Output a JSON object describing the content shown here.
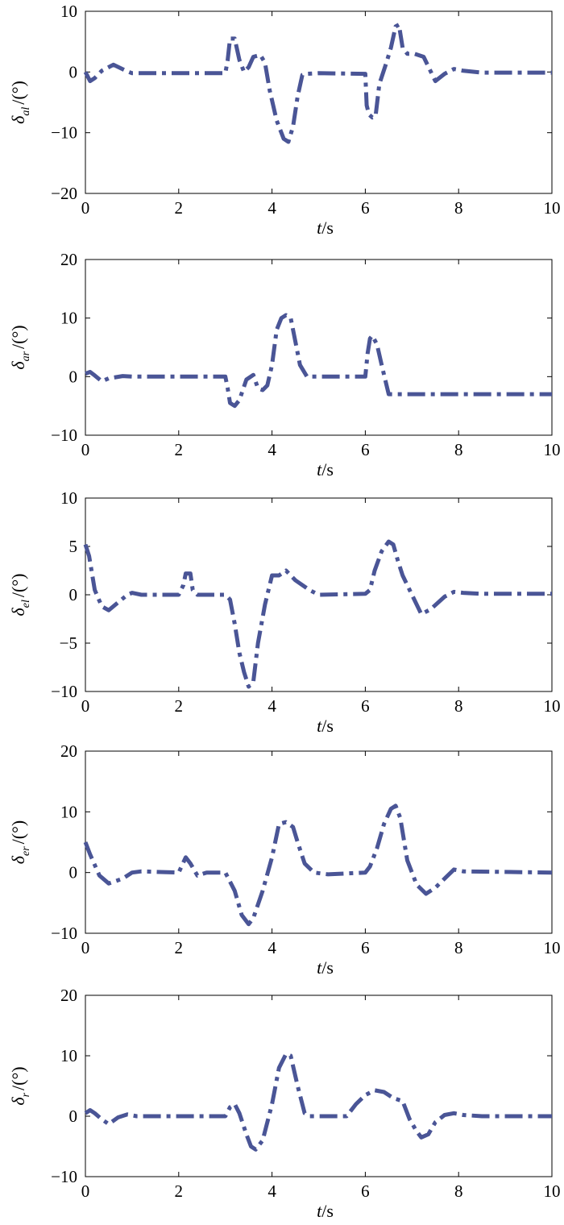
{
  "style": {
    "line_color": "#4a5596"
  },
  "chart_data": [
    {
      "type": "line",
      "xlabel": {
        "main": "t",
        "rest": "/s"
      },
      "ylabel": {
        "main": "δ",
        "sub": "al",
        "rest": "/(°)"
      },
      "xlim": [
        0,
        10
      ],
      "ylim": [
        -20,
        10
      ],
      "xticks": [
        0,
        2,
        4,
        6,
        8,
        10
      ],
      "yticks": [
        -20,
        -10,
        0,
        10
      ],
      "line_style": "dash-dot",
      "grid": false,
      "series": [
        {
          "x": [
            0,
            0.1,
            0.2,
            0.35,
            0.6,
            0.9,
            1.0,
            3.0,
            3.05,
            3.1,
            3.2,
            3.3,
            3.4,
            3.5,
            3.6,
            3.75,
            3.85,
            3.95,
            4.1,
            4.25,
            4.35,
            4.45,
            4.55,
            4.65,
            4.75,
            5.0,
            6.0,
            6.03,
            6.08,
            6.15,
            6.22,
            6.3,
            6.45,
            6.55,
            6.65,
            6.72,
            6.8,
            6.9,
            7.05,
            7.25,
            7.5,
            7.7,
            7.9,
            8.1,
            8.5,
            10
          ],
          "y": [
            0,
            -1.5,
            -1.0,
            0.2,
            1.2,
            0.1,
            -0.2,
            -0.2,
            2.0,
            5.5,
            5.5,
            2.0,
            0.0,
            0.8,
            2.5,
            2.8,
            1.5,
            -3.0,
            -8.0,
            -11.0,
            -11.5,
            -9.0,
            -4.0,
            -0.5,
            -0.3,
            -0.2,
            -0.3,
            -5.5,
            -7.0,
            -7.5,
            -7.3,
            -2.0,
            1.5,
            4.0,
            7.5,
            7.8,
            4.0,
            3.0,
            3.0,
            2.5,
            -1.5,
            -0.3,
            0.5,
            0.2,
            -0.1,
            -0.1
          ]
        }
      ]
    },
    {
      "type": "line",
      "xlabel": {
        "main": "t",
        "rest": "/s"
      },
      "ylabel": {
        "main": "δ",
        "sub": "ar",
        "rest": "/(°)"
      },
      "xlim": [
        0,
        10
      ],
      "ylim": [
        -10,
        20
      ],
      "xticks": [
        0,
        2,
        4,
        6,
        8,
        10
      ],
      "yticks": [
        -10,
        0,
        10,
        20
      ],
      "line_style": "dash-dot",
      "grid": false,
      "series": [
        {
          "x": [
            0,
            0.1,
            0.2,
            0.35,
            0.5,
            0.8,
            1.0,
            3.0,
            3.05,
            3.1,
            3.2,
            3.3,
            3.45,
            3.6,
            3.7,
            3.8,
            3.9,
            4.0,
            4.1,
            4.2,
            4.3,
            4.4,
            4.5,
            4.6,
            4.75,
            5.0,
            6.0,
            6.05,
            6.1,
            6.15,
            6.25,
            6.35,
            6.5,
            8.0,
            10
          ],
          "y": [
            0.5,
            0.8,
            0.2,
            -0.8,
            -0.3,
            0.1,
            0.0,
            0.0,
            -2.0,
            -4.5,
            -5.0,
            -4.0,
            -0.5,
            0.3,
            -2.0,
            -2.3,
            -1.5,
            2.0,
            8.0,
            10.0,
            10.5,
            10.0,
            6.0,
            2.0,
            0.0,
            0.0,
            0.0,
            4.0,
            6.5,
            7.0,
            5.5,
            2.0,
            -3.0,
            -3.0,
            -3.0
          ]
        }
      ]
    },
    {
      "type": "line",
      "xlabel": {
        "main": "t",
        "rest": "/s"
      },
      "ylabel": {
        "main": "δ",
        "sub": "el",
        "rest": "/(°)"
      },
      "xlim": [
        0,
        10
      ],
      "ylim": [
        -10,
        10
      ],
      "xticks": [
        0,
        2,
        4,
        6,
        8,
        10
      ],
      "yticks": [
        -10,
        -5,
        0,
        5,
        10
      ],
      "line_style": "dash-dot",
      "grid": false,
      "series": [
        {
          "x": [
            0,
            0.08,
            0.2,
            0.35,
            0.5,
            0.7,
            0.9,
            1.0,
            1.2,
            2.0,
            2.1,
            2.15,
            2.25,
            2.3,
            2.4,
            2.6,
            3.0,
            3.1,
            3.2,
            3.3,
            3.4,
            3.5,
            3.6,
            3.7,
            3.85,
            4.0,
            4.15,
            4.3,
            4.5,
            4.8,
            5.0,
            6.0,
            6.1,
            6.2,
            6.35,
            6.5,
            6.6,
            6.7,
            6.8,
            7.0,
            7.2,
            7.4,
            7.7,
            7.9,
            8.1,
            8.5,
            10
          ],
          "y": [
            5.2,
            4.0,
            0.5,
            -1.2,
            -1.6,
            -0.8,
            0.0,
            0.2,
            0.0,
            0.0,
            1.0,
            2.2,
            2.2,
            0.5,
            0.0,
            0.0,
            0.0,
            -0.5,
            -3.0,
            -6.0,
            -8.0,
            -9.5,
            -9.0,
            -5.0,
            -1.0,
            2.0,
            2.0,
            2.5,
            1.5,
            0.5,
            0.0,
            0.1,
            0.5,
            2.5,
            4.5,
            5.5,
            5.2,
            3.5,
            2.0,
            0.0,
            -2.0,
            -1.5,
            -0.2,
            0.3,
            0.2,
            0.1,
            0.1
          ]
        }
      ]
    },
    {
      "type": "line",
      "xlabel": {
        "main": "t",
        "rest": "/s"
      },
      "ylabel": {
        "main": "δ",
        "sub": "er",
        "rest": "/(°)"
      },
      "xlim": [
        0,
        10
      ],
      "ylim": [
        -10,
        20
      ],
      "xticks": [
        0,
        2,
        4,
        6,
        8,
        10
      ],
      "yticks": [
        -10,
        0,
        10,
        20
      ],
      "line_style": "dash-dot",
      "grid": false,
      "series": [
        {
          "x": [
            0,
            0.1,
            0.3,
            0.5,
            0.8,
            1.0,
            1.2,
            2.0,
            2.15,
            2.25,
            2.4,
            2.6,
            2.8,
            3.0,
            3.2,
            3.35,
            3.5,
            3.6,
            3.8,
            4.0,
            4.15,
            4.3,
            4.45,
            4.55,
            4.7,
            4.9,
            5.2,
            6.0,
            6.1,
            6.25,
            6.4,
            6.55,
            6.65,
            6.75,
            6.9,
            7.1,
            7.3,
            7.5,
            7.7,
            7.9,
            8.1,
            10
          ],
          "y": [
            5.0,
            3.0,
            -0.5,
            -1.8,
            -1.0,
            0.0,
            0.2,
            0.0,
            2.5,
            1.5,
            -0.5,
            0.0,
            0.0,
            0.0,
            -3.0,
            -7.0,
            -8.5,
            -7.5,
            -3.0,
            2.5,
            8.0,
            8.3,
            7.5,
            5.0,
            1.5,
            0.0,
            -0.3,
            0.0,
            1.0,
            4.0,
            8.0,
            10.5,
            11.0,
            9.0,
            2.0,
            -2.0,
            -3.5,
            -2.5,
            -1.0,
            0.5,
            0.2,
            0.0
          ]
        }
      ]
    },
    {
      "type": "line",
      "xlabel": {
        "main": "t",
        "rest": "/s"
      },
      "ylabel": {
        "main": "δ",
        "sub": "r",
        "rest": "/(°)"
      },
      "xlim": [
        0,
        10
      ],
      "ylim": [
        -10,
        20
      ],
      "xticks": [
        0,
        2,
        4,
        6,
        8,
        10
      ],
      "yticks": [
        -10,
        0,
        10,
        20
      ],
      "line_style": "dash-dot",
      "grid": false,
      "series": [
        {
          "x": [
            0,
            0.1,
            0.2,
            0.35,
            0.5,
            0.7,
            0.9,
            1.1,
            1.3,
            3.0,
            3.1,
            3.2,
            3.3,
            3.45,
            3.55,
            3.65,
            3.8,
            4.0,
            4.15,
            4.3,
            4.4,
            4.55,
            4.7,
            4.8,
            5.0,
            5.6,
            5.8,
            6.0,
            6.2,
            6.4,
            6.6,
            6.8,
            6.95,
            7.1,
            7.2,
            7.35,
            7.5,
            7.7,
            7.9,
            8.1,
            8.5,
            10
          ],
          "y": [
            0.5,
            1.0,
            0.5,
            -0.5,
            -1.3,
            -0.2,
            0.3,
            0.0,
            0.0,
            0.0,
            1.5,
            2.0,
            0.5,
            -3.0,
            -5.0,
            -5.5,
            -4.0,
            2.0,
            8.0,
            10.3,
            10.0,
            5.0,
            0.5,
            0.0,
            0.0,
            0.0,
            2.0,
            3.5,
            4.3,
            4.0,
            3.0,
            2.5,
            -0.5,
            -2.5,
            -3.5,
            -3.0,
            -1.0,
            0.2,
            0.5,
            0.2,
            0.0,
            0.0
          ]
        }
      ]
    }
  ]
}
